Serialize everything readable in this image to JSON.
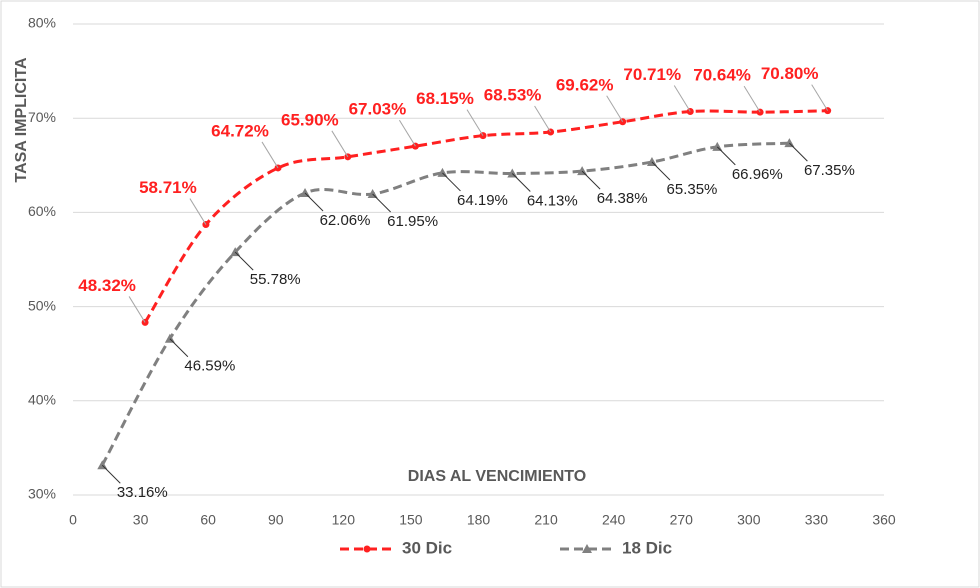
{
  "chart_data": {
    "type": "line",
    "y_label": "TASA IMPLICITA",
    "x_label": "DIAS AL VENCIMIENTO",
    "xlim": [
      0,
      360
    ],
    "xticks": [
      0,
      30,
      60,
      90,
      120,
      150,
      180,
      210,
      240,
      270,
      300,
      330,
      360
    ],
    "ylim": [
      30,
      80
    ],
    "yticks": [
      {
        "value": 30,
        "label": "30%"
      },
      {
        "value": 40,
        "label": "40%"
      },
      {
        "value": 50,
        "label": "50%"
      },
      {
        "value": 60,
        "label": "60%"
      },
      {
        "value": 70,
        "label": "70%"
      },
      {
        "value": 80,
        "label": "80%"
      }
    ],
    "grid": true,
    "legend": "bottom",
    "series": [
      {
        "name": "30 Dic",
        "color": "#ff2020",
        "marker": "circle",
        "x": [
          32,
          59,
          91,
          122,
          152,
          182,
          212,
          244,
          274,
          305,
          335
        ],
        "values": [
          48.32,
          58.71,
          64.72,
          65.9,
          67.03,
          68.15,
          68.53,
          69.62,
          70.71,
          70.64,
          70.8
        ],
        "value_labels": [
          "48.32%",
          "58.71%",
          "64.72%",
          "65.90%",
          "67.03%",
          "68.15%",
          "68.53%",
          "69.62%",
          "70.71%",
          "70.64%",
          "70.80%"
        ]
      },
      {
        "name": "18 Dic",
        "color": "#808080",
        "marker": "triangle",
        "x": [
          13,
          43,
          72,
          103,
          133,
          164,
          195,
          226,
          257,
          286,
          318
        ],
        "values": [
          33.16,
          46.59,
          55.78,
          62.06,
          61.95,
          64.19,
          64.13,
          64.38,
          65.35,
          66.96,
          67.35
        ],
        "value_labels": [
          "33.16%",
          "46.59%",
          "55.78%",
          "62.06%",
          "61.95%",
          "64.19%",
          "64.13%",
          "64.38%",
          "65.35%",
          "66.96%",
          "67.35%"
        ]
      }
    ]
  }
}
